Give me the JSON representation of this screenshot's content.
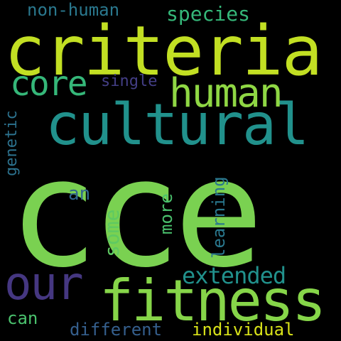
{
  "background": "#000000",
  "words": [
    {
      "key": "cce",
      "text": "cce",
      "color": "#7ad151"
    },
    {
      "key": "criteria",
      "text": "criteria",
      "color": "#c2df23"
    },
    {
      "key": "cultural",
      "text": "cultural",
      "color": "#21918c"
    },
    {
      "key": "fitness",
      "text": "fitness",
      "color": "#86d549"
    },
    {
      "key": "human",
      "text": "human",
      "color": "#8fd744"
    },
    {
      "key": "our",
      "text": "our",
      "color": "#453781"
    },
    {
      "key": "core",
      "text": "core",
      "color": "#35b779"
    },
    {
      "key": "extended",
      "text": "extended",
      "color": "#21918c"
    },
    {
      "key": "species",
      "text": "species",
      "color": "#35b779"
    },
    {
      "key": "non_human",
      "text": "non-human",
      "color": "#2a788e"
    },
    {
      "key": "single",
      "text": "single",
      "color": "#433e85"
    },
    {
      "key": "genetic",
      "text": "genetic",
      "color": "#2c728e"
    },
    {
      "key": "an",
      "text": "an",
      "color": "#31668e"
    },
    {
      "key": "some",
      "text": "some",
      "color": "#5ec962"
    },
    {
      "key": "more",
      "text": "more",
      "color": "#4ac16d"
    },
    {
      "key": "learning",
      "text": "learning",
      "color": "#2a788e"
    },
    {
      "key": "can",
      "text": "can",
      "color": "#4ac16d"
    },
    {
      "key": "different",
      "text": "different",
      "color": "#355f8d"
    },
    {
      "key": "individual",
      "text": "individual",
      "color": "#d8e219"
    }
  ]
}
